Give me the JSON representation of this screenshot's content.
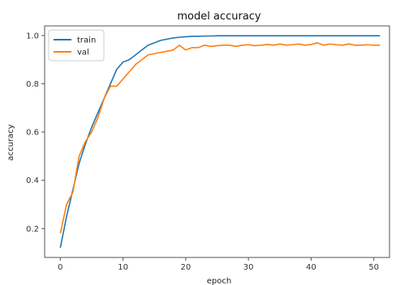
{
  "chart_data": {
    "type": "line",
    "title": "model accuracy",
    "xlabel": "epoch",
    "ylabel": "accuracy",
    "xlim": [
      -2.5,
      52.5
    ],
    "ylim": [
      0.08,
      1.04
    ],
    "xticks": [
      0,
      10,
      20,
      30,
      40,
      50
    ],
    "yticks": [
      0.2,
      0.4,
      0.6,
      0.8,
      1.0
    ],
    "ytick_labels": [
      "0.2",
      "0.4",
      "0.6",
      "0.8",
      "1.0"
    ],
    "grid": false,
    "legend": "upper-left",
    "x": [
      0,
      1,
      2,
      3,
      4,
      5,
      6,
      7,
      8,
      9,
      10,
      11,
      12,
      13,
      14,
      15,
      16,
      17,
      18,
      19,
      20,
      21,
      22,
      23,
      24,
      25,
      26,
      27,
      28,
      29,
      30,
      31,
      32,
      33,
      34,
      35,
      36,
      37,
      38,
      39,
      40,
      41,
      42,
      43,
      44,
      45,
      46,
      47,
      48,
      49,
      50,
      51
    ],
    "series": [
      {
        "name": "train",
        "color": "#1f77b4",
        "values": [
          0.12,
          0.25,
          0.36,
          0.47,
          0.55,
          0.62,
          0.68,
          0.74,
          0.8,
          0.86,
          0.89,
          0.9,
          0.92,
          0.94,
          0.96,
          0.97,
          0.98,
          0.985,
          0.99,
          0.993,
          0.995,
          0.997,
          0.997,
          0.998,
          0.998,
          0.999,
          0.999,
          0.999,
          0.999,
          0.999,
          0.999,
          0.999,
          0.999,
          0.999,
          0.999,
          0.999,
          0.999,
          0.999,
          0.999,
          0.999,
          0.999,
          0.999,
          0.999,
          0.999,
          0.999,
          0.999,
          0.999,
          0.999,
          0.999,
          0.999,
          0.999,
          0.999
        ]
      },
      {
        "name": "val",
        "color": "#ff7f0e",
        "values": [
          0.18,
          0.3,
          0.35,
          0.5,
          0.56,
          0.6,
          0.66,
          0.74,
          0.79,
          0.79,
          0.82,
          0.85,
          0.88,
          0.9,
          0.92,
          0.925,
          0.93,
          0.935,
          0.94,
          0.96,
          0.94,
          0.95,
          0.95,
          0.96,
          0.955,
          0.958,
          0.96,
          0.96,
          0.955,
          0.96,
          0.962,
          0.958,
          0.96,
          0.963,
          0.96,
          0.965,
          0.96,
          0.962,
          0.965,
          0.96,
          0.963,
          0.97,
          0.96,
          0.965,
          0.962,
          0.96,
          0.965,
          0.96,
          0.96,
          0.962,
          0.96,
          0.96
        ]
      }
    ]
  }
}
